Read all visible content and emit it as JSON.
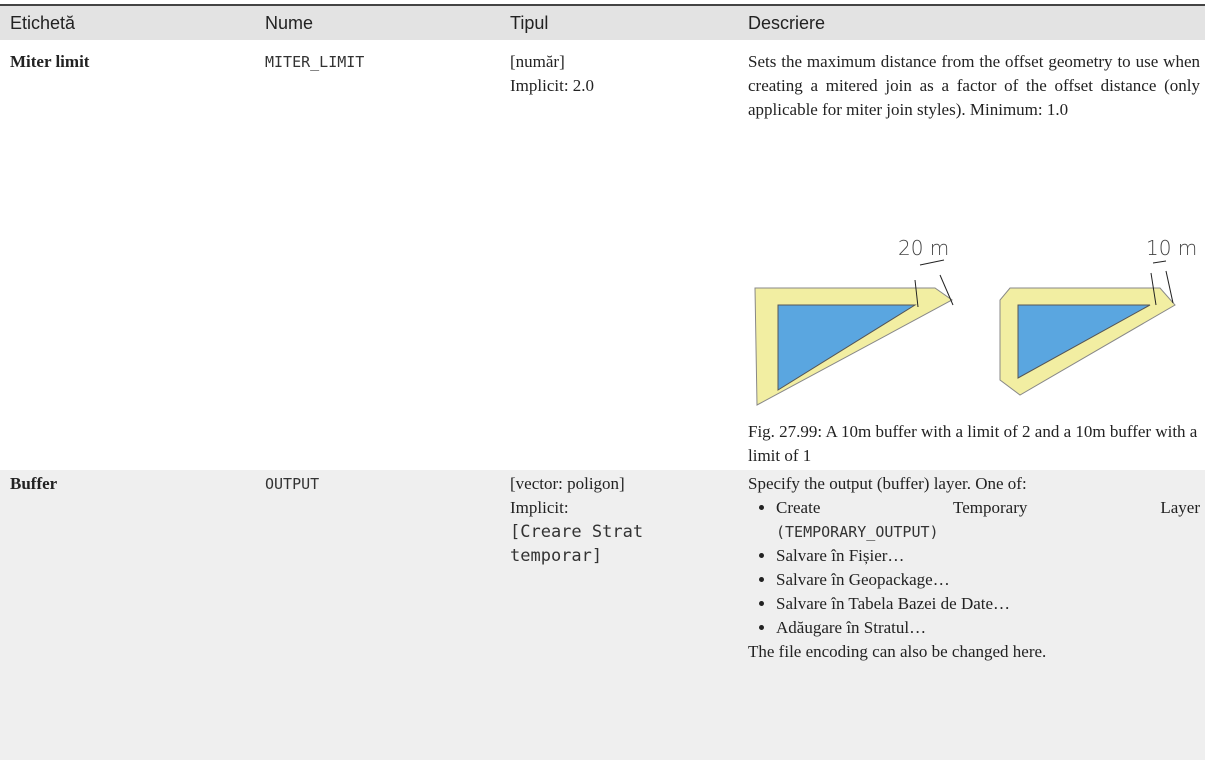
{
  "table": {
    "header": [
      "Etichetă",
      "Nume",
      "Tipul",
      "Descriere"
    ],
    "rows": [
      {
        "label": "Miter limit",
        "name": "MITER_LIMIT",
        "type": "[număr]",
        "default": "Implicit: 2.0",
        "description": "Sets the maximum distance from the offset geometry to use when creating a mitered join as a factor of the offset distance (only applicable for miter join styles). Minimum: 1.0",
        "figure": {
          "labels": [
            "20 m",
            "10 m"
          ],
          "caption": "Fig. 27.99: A 10m buffer with a limit of 2 and a 10m buffer with a limit of 1"
        }
      },
      {
        "label": "Buffer",
        "name": "OUTPUT",
        "type": "[vector: poligon]",
        "default": "Implicit:",
        "default_value": "[Creare Strat temporar]",
        "description": "Specify the output (buffer) layer. One of:",
        "options": [
          {
            "text": "Create Temporary Layer",
            "code": "(TEMPORARY_OUTPUT)"
          },
          {
            "text": "Salvare în Fișier…"
          },
          {
            "text": "Salvare în Geopackage…"
          },
          {
            "text": "Salvare în Tabela Bazei de Date…"
          },
          {
            "text": "Adăugare în Stratul…"
          }
        ],
        "note": "The file encoding can also be changed here."
      }
    ]
  }
}
